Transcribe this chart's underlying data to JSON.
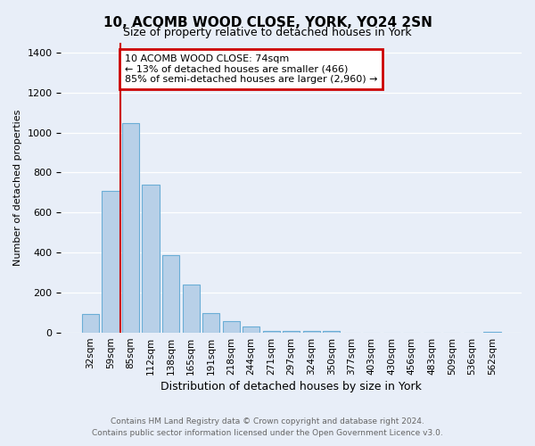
{
  "title": "10, ACOMB WOOD CLOSE, YORK, YO24 2SN",
  "subtitle": "Size of property relative to detached houses in York",
  "xlabel": "Distribution of detached houses by size in York",
  "ylabel": "Number of detached properties",
  "categories": [
    "32sqm",
    "59sqm",
    "85sqm",
    "112sqm",
    "138sqm",
    "165sqm",
    "191sqm",
    "218sqm",
    "244sqm",
    "271sqm",
    "297sqm",
    "324sqm",
    "350sqm",
    "377sqm",
    "403sqm",
    "430sqm",
    "456sqm",
    "483sqm",
    "509sqm",
    "536sqm",
    "562sqm"
  ],
  "values": [
    95,
    710,
    1045,
    740,
    390,
    240,
    100,
    60,
    30,
    10,
    10,
    10,
    10,
    0,
    0,
    0,
    0,
    0,
    0,
    0,
    5
  ],
  "bar_color": "#b8d0e8",
  "bar_edge_color": "#6baed6",
  "annotation_box_text": "10 ACOMB WOOD CLOSE: 74sqm\n← 13% of detached houses are smaller (466)\n85% of semi-detached houses are larger (2,960) →",
  "annotation_box_color": "#cc0000",
  "vline_color": "#cc0000",
  "vline_x_index": 1.5,
  "footer_line1": "Contains HM Land Registry data © Crown copyright and database right 2024.",
  "footer_line2": "Contains public sector information licensed under the Open Government Licence v3.0.",
  "background_color": "#e8eef8",
  "plot_bg_color": "#e8eef8",
  "ylim": [
    0,
    1450
  ],
  "yticks": [
    0,
    200,
    400,
    600,
    800,
    1000,
    1200,
    1400
  ]
}
